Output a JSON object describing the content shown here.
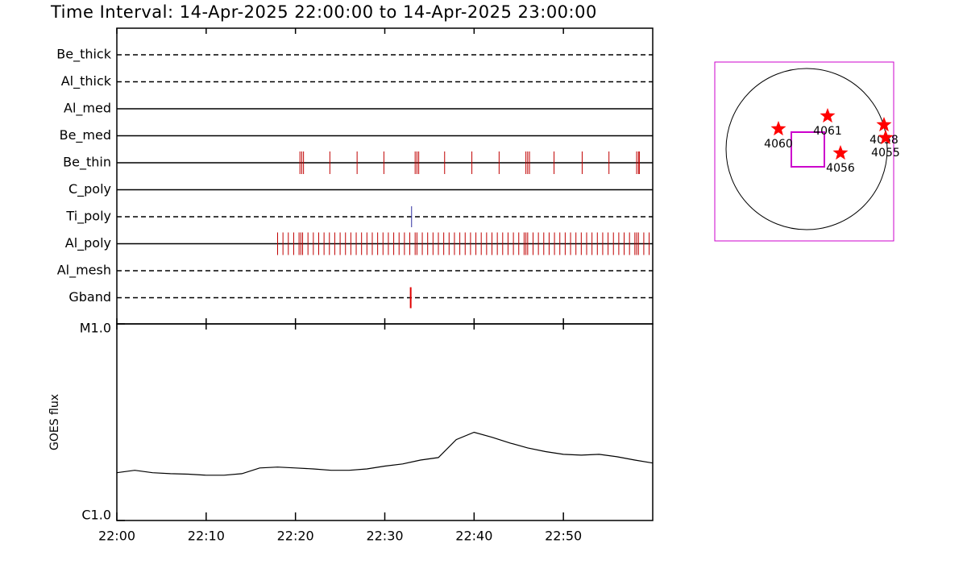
{
  "chart_data": [
    {
      "type": "timeline",
      "title": "Time Interval: 14-Apr-2025 22:00:00 to 14-Apr-2025 23:00:00",
      "xlim": [
        0,
        60
      ],
      "xticks": [
        0,
        10,
        20,
        30,
        40,
        50
      ],
      "rows": [
        {
          "name": "Be_thick",
          "style": "dashed"
        },
        {
          "name": "Al_thick",
          "style": "dashed"
        },
        {
          "name": "Al_med",
          "style": "solid"
        },
        {
          "name": "Be_med",
          "style": "solid"
        },
        {
          "name": "Be_thin",
          "style": "solid",
          "color": "#c00000",
          "events": [
            20.5,
            20.7,
            20.9,
            23.85,
            26.9,
            29.9,
            33.4,
            33.6,
            33.8,
            36.7,
            39.75,
            42.8,
            45.8,
            46.0,
            46.2,
            48.95,
            52.1,
            55.1,
            58.2,
            58.4,
            58.5
          ]
        },
        {
          "name": "C_poly",
          "style": "solid"
        },
        {
          "name": "Ti_poly",
          "style": "dashed",
          "color": "#3030a0",
          "events": [
            33.0
          ]
        },
        {
          "name": "Al_poly",
          "style": "solid",
          "color": "#c00000",
          "events": [
            18.0,
            18.6,
            19.2,
            19.8,
            20.4,
            20.6,
            20.8,
            21.4,
            22.0,
            22.6,
            23.2,
            23.8,
            24.4,
            25.0,
            25.6,
            26.2,
            26.8,
            27.4,
            28.0,
            28.6,
            29.2,
            29.8,
            30.4,
            31.0,
            31.6,
            32.2,
            32.8,
            33.4,
            33.6,
            34.2,
            34.8,
            35.4,
            36.0,
            36.6,
            37.2,
            37.8,
            38.4,
            39.0,
            39.6,
            40.2,
            40.8,
            41.4,
            42.0,
            42.6,
            43.2,
            43.8,
            44.4,
            45.0,
            45.6,
            45.8,
            46.0,
            46.6,
            47.2,
            47.8,
            48.4,
            49.0,
            49.6,
            50.2,
            50.8,
            51.4,
            52.0,
            52.6,
            53.2,
            53.8,
            54.4,
            55.0,
            55.6,
            56.2,
            56.8,
            57.4,
            58.0,
            58.2,
            58.4,
            59.0,
            59.6
          ]
        },
        {
          "name": "Al_mesh",
          "style": "dashed"
        },
        {
          "name": "Gband",
          "style": "dashed",
          "color": "#e00000",
          "events": [
            32.9
          ]
        }
      ]
    },
    {
      "type": "line",
      "ylabel": "GOES flux",
      "log": true,
      "color": "#000000",
      "xlim": [
        0,
        60
      ],
      "xticks": [
        {
          "value": 0,
          "label": "22:00"
        },
        {
          "value": 10,
          "label": "22:10"
        },
        {
          "value": 20,
          "label": "22:20"
        },
        {
          "value": 30,
          "label": "22:30"
        },
        {
          "value": 40,
          "label": "22:40"
        },
        {
          "value": 50,
          "label": "22:50"
        }
      ],
      "ylim": [
        1e-06,
        1e-05
      ],
      "yticks": [
        {
          "value": 1e-06,
          "label": "C1.0"
        },
        {
          "value": 1e-05,
          "label": "M1.0"
        }
      ],
      "x": [
        0,
        2,
        4,
        6,
        8,
        10,
        12,
        14,
        16,
        18,
        20,
        22,
        24,
        26,
        28,
        30,
        32,
        34,
        36,
        38,
        40,
        42,
        44,
        46,
        48,
        50,
        52,
        54,
        56,
        58,
        60
      ],
      "values": [
        1.75e-06,
        1.8e-06,
        1.75e-06,
        1.73e-06,
        1.72e-06,
        1.7e-06,
        1.7e-06,
        1.73e-06,
        1.85e-06,
        1.87e-06,
        1.85e-06,
        1.83e-06,
        1.8e-06,
        1.8e-06,
        1.83e-06,
        1.89e-06,
        1.94e-06,
        2.03e-06,
        2.09e-06,
        2.58e-06,
        2.81e-06,
        2.65e-06,
        2.48e-06,
        2.34e-06,
        2.24e-06,
        2.17e-06,
        2.15e-06,
        2.17e-06,
        2.11e-06,
        2.03e-06,
        1.96e-06
      ]
    },
    {
      "type": "map",
      "marker_color": "#ff0000",
      "frame_color": "#cc00cc",
      "regions": [
        "4060",
        "4061",
        "4056",
        "4058",
        "4055"
      ]
    }
  ]
}
